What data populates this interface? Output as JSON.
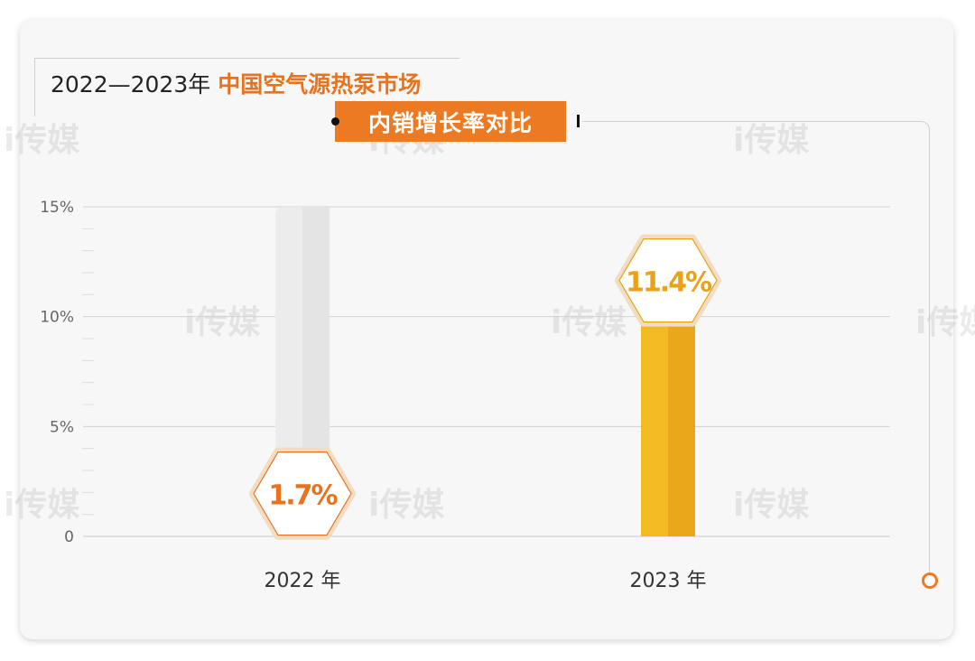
{
  "title": {
    "prefix": "2022—2023年",
    "highlight": "中国空气源热泵市场",
    "subtitle": "内销增长率对比"
  },
  "watermark_text": "i传媒",
  "colors": {
    "bar_2022": "#ec7a22",
    "bar_2022_dark": "#e2661a",
    "bar_2023": "#f2bb22",
    "bar_2023_dark": "#eaa71c",
    "track": "#ececec",
    "grid": "#d2d2d2",
    "label_2022": "#e8731e",
    "label_2023": "#e8a316"
  },
  "chart_data": {
    "type": "bar",
    "title": "2022—2023年 中国空气源热泵市场 内销增长率对比",
    "categories": [
      "2022 年",
      "2023 年"
    ],
    "values": [
      1.7,
      11.4
    ],
    "value_labels": [
      "1.7%",
      "11.4%"
    ],
    "yticks": [
      "0",
      "5%",
      "10%",
      "15%"
    ],
    "ytick_values": [
      0,
      5,
      10,
      15
    ],
    "ylim": [
      0,
      15
    ],
    "xlabel": "",
    "ylabel": "",
    "grid": true,
    "legend": "none"
  }
}
